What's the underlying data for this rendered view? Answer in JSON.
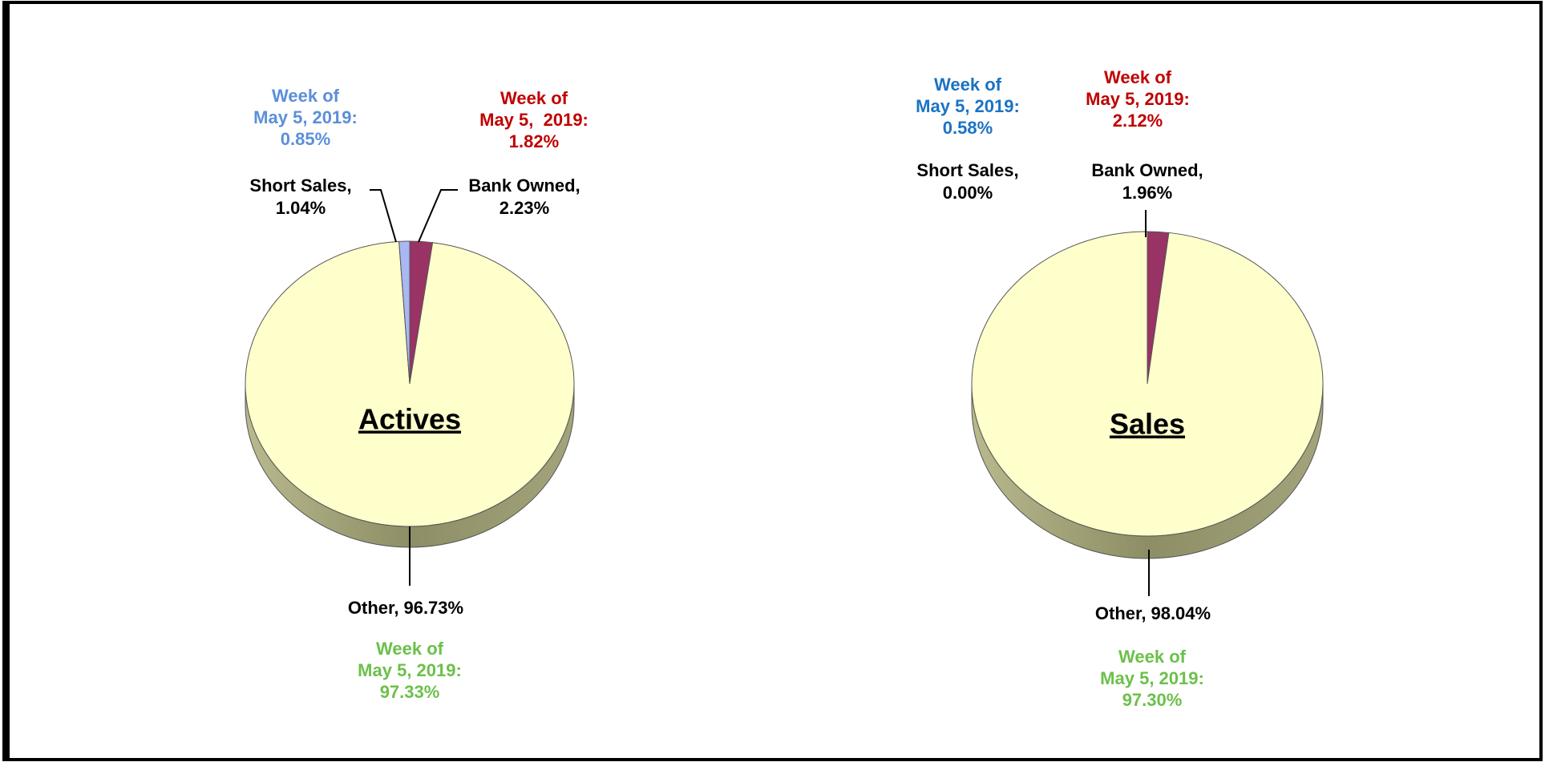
{
  "chart_data": [
    {
      "type": "pie",
      "title": "Actives",
      "categories": [
        "Bank Owned,",
        "Other,",
        "Short Sales,"
      ],
      "values": [
        2.23,
        96.73,
        1.04
      ],
      "value_labels": [
        "2.23%",
        "96.73%",
        "1.04%"
      ],
      "colors": [
        "#993366",
        "#ffffcc",
        "#a9b8f2"
      ],
      "annotations": [
        {
          "color": "#c00000",
          "lines": [
            "Week of",
            "May 5,  2019:",
            "1.82%"
          ]
        },
        {
          "color": "#6cc04a",
          "lines": [
            "Week of",
            "May 5, 2019:",
            "97.33%"
          ]
        },
        {
          "color": "#5b8fd9",
          "lines": [
            "Week of",
            "May 5, 2019:",
            "0.85%"
          ]
        }
      ]
    },
    {
      "type": "pie",
      "title": "Sales",
      "categories": [
        "Bank Owned,",
        "Other,",
        "Short Sales,"
      ],
      "values": [
        1.96,
        98.04,
        0.0
      ],
      "value_labels": [
        "1.96%",
        "98.04%",
        "0.00%"
      ],
      "colors": [
        "#993366",
        "#ffffcc",
        "#a9b8f2"
      ],
      "annotations": [
        {
          "color": "#c00000",
          "lines": [
            "Week of",
            "May 5, 2019:",
            "2.12%"
          ]
        },
        {
          "color": "#6cc04a",
          "lines": [
            "Week of",
            "May 5, 2019:",
            "97.30%"
          ]
        },
        {
          "color": "#1a73c4",
          "lines": [
            "Week of",
            "May 5, 2019:",
            "0.58%"
          ]
        }
      ]
    }
  ]
}
